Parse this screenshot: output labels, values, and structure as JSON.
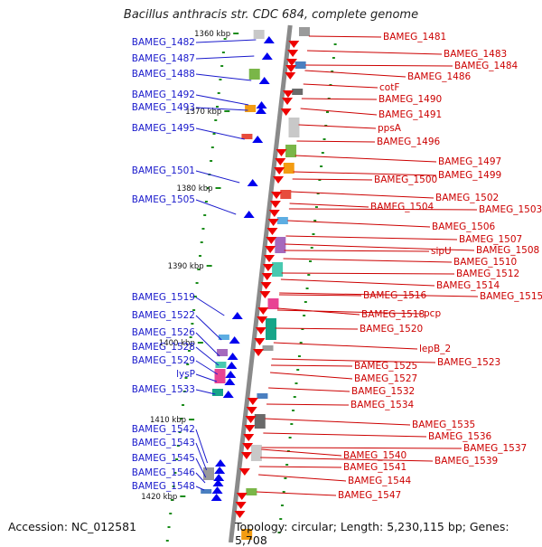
{
  "title": "Bacillus anthracis str. CDC 684, complete genome",
  "footer": {
    "accession": "Accession: NC_012581",
    "summary": "Topology: circular; Length: 5,230,115 bp; Genes: 5,708"
  },
  "colors": {
    "backbone": "#8a8a8a",
    "left_label": "#1a1acc",
    "right_label": "#cc0000",
    "tick": "#1a8c1a",
    "left_gene": "#0000ee",
    "right_gene": "#ee0000"
  },
  "scale_ticks": [
    "1360 kbp",
    "1370 kbp",
    "1380 kbp",
    "1390 kbp",
    "1400 kbp",
    "1410 kbp",
    "1420 kbp"
  ],
  "left_labels": [
    "BAMEG_1482",
    "BAMEG_1487",
    "BAMEG_1488",
    "BAMEG_1492",
    "BAMEG_1493",
    "BAMEG_1495",
    "BAMEG_1501",
    "BAMEG_1505",
    "BAMEG_1519",
    "BAMEG_1522",
    "BAMEG_1526",
    "BAMEG_1528",
    "BAMEG_1529",
    "lysP",
    "BAMEG_1533",
    "BAMEG_1542",
    "BAMEG_1543",
    "BAMEG_1545",
    "BAMEG_1546",
    "BAMEG_1548"
  ],
  "right_labels": [
    "BAMEG_1481",
    "BAMEG_1483",
    "BAMEG_1484",
    "BAMEG_1486",
    "cotF",
    "BAMEG_1490",
    "BAMEG_1491",
    "ppsA",
    "BAMEG_1496",
    "BAMEG_1497",
    "BAMEG_1499",
    "BAMEG_1500",
    "BAMEG_1502",
    "BAMEG_1504",
    "BAMEG_1503",
    "BAMEG_1506",
    "BAMEG_1507",
    "sipU",
    "BAMEG_1508",
    "BAMEG_1510",
    "BAMEG_1512",
    "BAMEG_1514",
    "BAMEG_1515",
    "BAMEG_1516",
    "BAMEG_1518",
    "pcp",
    "BAMEG_1520",
    "lepB_2",
    "BAMEG_1523",
    "BAMEG_1525",
    "BAMEG_1527",
    "BAMEG_1532",
    "BAMEG_1534",
    "BAMEG_1535",
    "BAMEG_1536",
    "BAMEG_1537",
    "BAMEG_1540",
    "BAMEG_1539",
    "BAMEG_1541",
    "BAMEG_1544",
    "BAMEG_1547"
  ]
}
